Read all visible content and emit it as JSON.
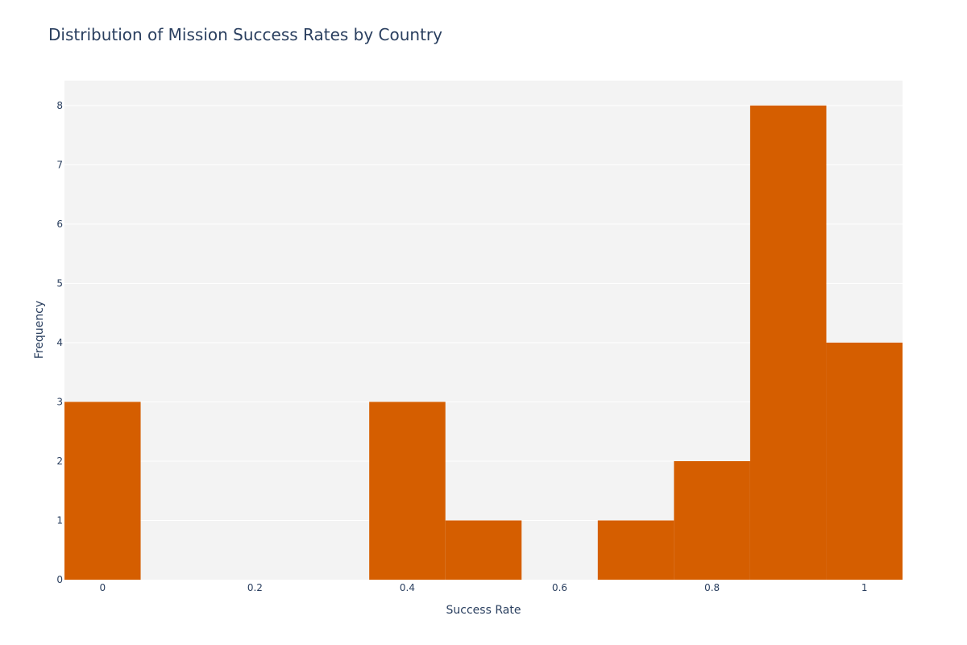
{
  "chart_data": {
    "type": "bar",
    "title": "Distribution of Mission Success Rates by Country",
    "xlabel": "Success Rate",
    "ylabel": "Frequency",
    "bin_width": 0.1,
    "bins": [
      {
        "start": -0.05,
        "end": 0.05,
        "count": 3
      },
      {
        "start": 0.05,
        "end": 0.15,
        "count": 0
      },
      {
        "start": 0.15,
        "end": 0.25,
        "count": 0
      },
      {
        "start": 0.25,
        "end": 0.35,
        "count": 0
      },
      {
        "start": 0.35,
        "end": 0.45,
        "count": 3
      },
      {
        "start": 0.45,
        "end": 0.55,
        "count": 1
      },
      {
        "start": 0.55,
        "end": 0.65,
        "count": 0
      },
      {
        "start": 0.65,
        "end": 0.75,
        "count": 1
      },
      {
        "start": 0.75,
        "end": 0.85,
        "count": 2
      },
      {
        "start": 0.85,
        "end": 0.95,
        "count": 8
      },
      {
        "start": 0.95,
        "end": 1.05,
        "count": 4
      }
    ],
    "xlim": [
      -0.05,
      1.05
    ],
    "ylim": [
      0,
      8.42
    ],
    "x_ticks": [
      0,
      0.2,
      0.4,
      0.6,
      0.8,
      1
    ],
    "x_tick_labels": [
      "0",
      "0.2",
      "0.4",
      "0.6",
      "0.8",
      "1"
    ],
    "y_ticks": [
      0,
      1,
      2,
      3,
      4,
      5,
      6,
      7,
      8
    ],
    "y_tick_labels": [
      "0",
      "1",
      "2",
      "3",
      "4",
      "5",
      "6",
      "7",
      "8"
    ],
    "grid": true,
    "legend": "none",
    "colors": {
      "bar": "#d55e00",
      "plot_bg": "#f3f3f3",
      "grid": "#ffffff",
      "text": "#2a3f5f",
      "page_bg": "#ffffff"
    }
  }
}
